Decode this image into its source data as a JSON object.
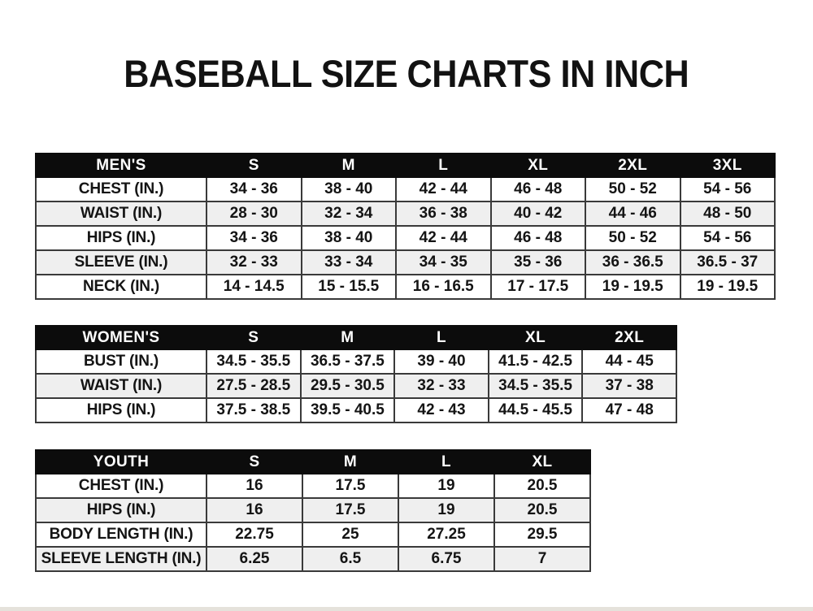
{
  "title": "BASEBALL SIZE CHARTS IN INCH",
  "colors": {
    "header_bg": "#0c0c0c",
    "header_text": "#ffffff",
    "row_bg": "#ffffff",
    "row_alt_bg": "#efefef",
    "border": "#3a3a3a",
    "text": "#141414",
    "page_bg": "#ffffff"
  },
  "chart_data": [
    {
      "type": "table",
      "title": "MEN'S",
      "columns": [
        "S",
        "M",
        "L",
        "XL",
        "2XL",
        "3XL"
      ],
      "rows": [
        {
          "label": "CHEST (IN.)",
          "values": [
            "34 - 36",
            "38 - 40",
            "42 - 44",
            "46 - 48",
            "50 - 52",
            "54 - 56"
          ]
        },
        {
          "label": "WAIST (IN.)",
          "values": [
            "28 - 30",
            "32 - 34",
            "36 - 38",
            "40 - 42",
            "44 - 46",
            "48 - 50"
          ]
        },
        {
          "label": "HIPS (IN.)",
          "values": [
            "34 - 36",
            "38 - 40",
            "42 - 44",
            "46 - 48",
            "50 - 52",
            "54 - 56"
          ]
        },
        {
          "label": "SLEEVE (IN.)",
          "values": [
            "32 - 33",
            "33 - 34",
            "34 - 35",
            "35 - 36",
            "36 - 36.5",
            "36.5 - 37"
          ]
        },
        {
          "label": "NECK (IN.)",
          "values": [
            "14 - 14.5",
            "15 - 15.5",
            "16 - 16.5",
            "17 - 17.5",
            "19 - 19.5",
            "19 - 19.5"
          ]
        }
      ]
    },
    {
      "type": "table",
      "title": "WOMEN'S",
      "columns": [
        "S",
        "M",
        "L",
        "XL",
        "2XL"
      ],
      "rows": [
        {
          "label": "BUST (IN.)",
          "values": [
            "34.5 - 35.5",
            "36.5 - 37.5",
            "39 - 40",
            "41.5 - 42.5",
            "44 - 45"
          ]
        },
        {
          "label": "WAIST (IN.)",
          "values": [
            "27.5 - 28.5",
            "29.5 - 30.5",
            "32 - 33",
            "34.5 - 35.5",
            "37 - 38"
          ]
        },
        {
          "label": "HIPS (IN.)",
          "values": [
            "37.5 - 38.5",
            "39.5 - 40.5",
            "42 - 43",
            "44.5 - 45.5",
            "47 - 48"
          ]
        }
      ]
    },
    {
      "type": "table",
      "title": "YOUTH",
      "columns": [
        "S",
        "M",
        "L",
        "XL"
      ],
      "rows": [
        {
          "label": "CHEST (IN.)",
          "values": [
            "16",
            "17.5",
            "19",
            "20.5"
          ]
        },
        {
          "label": "HIPS (IN.)",
          "values": [
            "16",
            "17.5",
            "19",
            "20.5"
          ]
        },
        {
          "label": "BODY LENGTH (IN.)",
          "values": [
            "22.75",
            "25",
            "27.25",
            "29.5"
          ]
        },
        {
          "label": "SLEEVE LENGTH (IN.)",
          "values": [
            "6.25",
            "6.5",
            "6.75",
            "7"
          ]
        }
      ]
    }
  ]
}
